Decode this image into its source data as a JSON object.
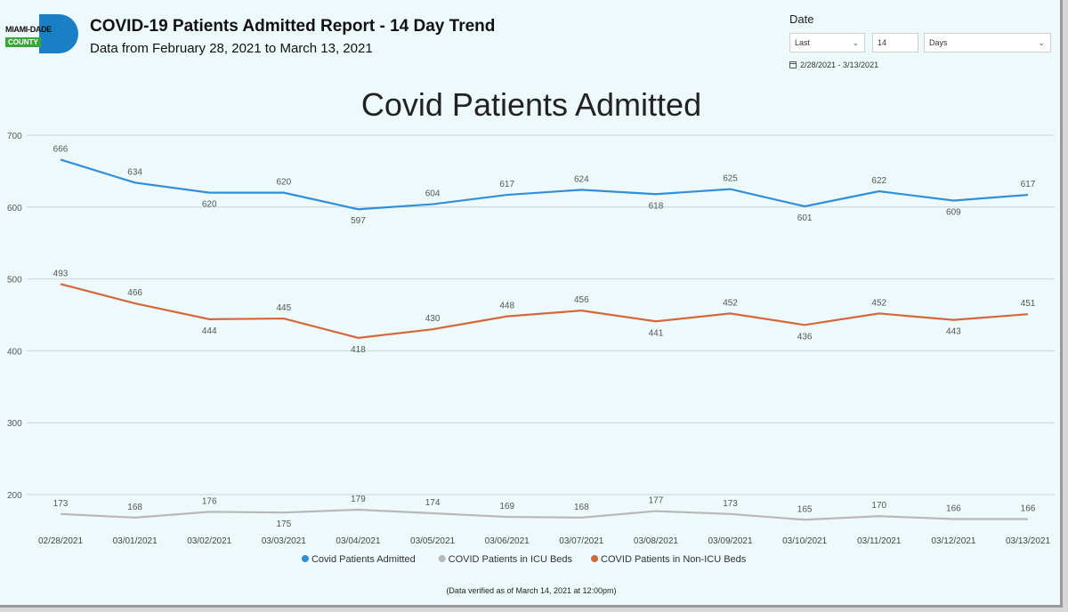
{
  "header": {
    "logo_top": "MIAMI-DADE",
    "logo_bottom": "COUNTY",
    "title": "COVID-19 Patients Admitted Report - 14 Day Trend",
    "subtitle": "Data from February 28, 2021 to March 13, 2021"
  },
  "date_filter": {
    "label": "Date",
    "mode": "Last",
    "count": "14",
    "unit": "Days",
    "range": "2/28/2021 - 3/13/2021"
  },
  "footer_note": "(Data verified as of March 14, 2021 at 12:00pm)",
  "chart_data": {
    "type": "line",
    "title": "Covid Patients Admitted",
    "xlabel": "",
    "ylabel": "",
    "ylim": [
      150,
      700
    ],
    "yticks": [
      200,
      300,
      400,
      500,
      600,
      700
    ],
    "grid": true,
    "legend_position": "bottom",
    "categories": [
      "02/28/2021",
      "03/01/2021",
      "03/02/2021",
      "03/03/2021",
      "03/04/2021",
      "03/05/2021",
      "03/06/2021",
      "03/07/2021",
      "03/08/2021",
      "03/09/2021",
      "03/10/2021",
      "03/11/2021",
      "03/12/2021",
      "03/13/2021"
    ],
    "series": [
      {
        "name": "Covid Patients Admitted",
        "color": "#2f8fdc",
        "values": [
          666,
          634,
          620,
          620,
          597,
          604,
          617,
          624,
          618,
          625,
          601,
          622,
          609,
          617
        ],
        "label_pos": [
          "above",
          "above",
          "below",
          "above",
          "below",
          "above",
          "above",
          "above",
          "below",
          "above",
          "below",
          "above",
          "below",
          "above"
        ]
      },
      {
        "name": "COVID Patients in ICU Beds",
        "color": "#b8b8b8",
        "values": [
          173,
          168,
          176,
          175,
          179,
          174,
          169,
          168,
          177,
          173,
          165,
          170,
          166,
          166
        ],
        "label_pos": [
          "above",
          "above",
          "above",
          "below",
          "above",
          "above",
          "above",
          "above",
          "above",
          "above",
          "above",
          "above",
          "above",
          "above"
        ]
      },
      {
        "name": "COVID Patients in Non-ICU Beds",
        "color": "#d4683a",
        "values": [
          493,
          466,
          444,
          445,
          418,
          430,
          448,
          456,
          441,
          452,
          436,
          452,
          443,
          451
        ],
        "label_pos": [
          "above",
          "above",
          "below",
          "above",
          "below",
          "above",
          "above",
          "above",
          "below",
          "above",
          "below",
          "above",
          "below",
          "above"
        ]
      }
    ]
  }
}
